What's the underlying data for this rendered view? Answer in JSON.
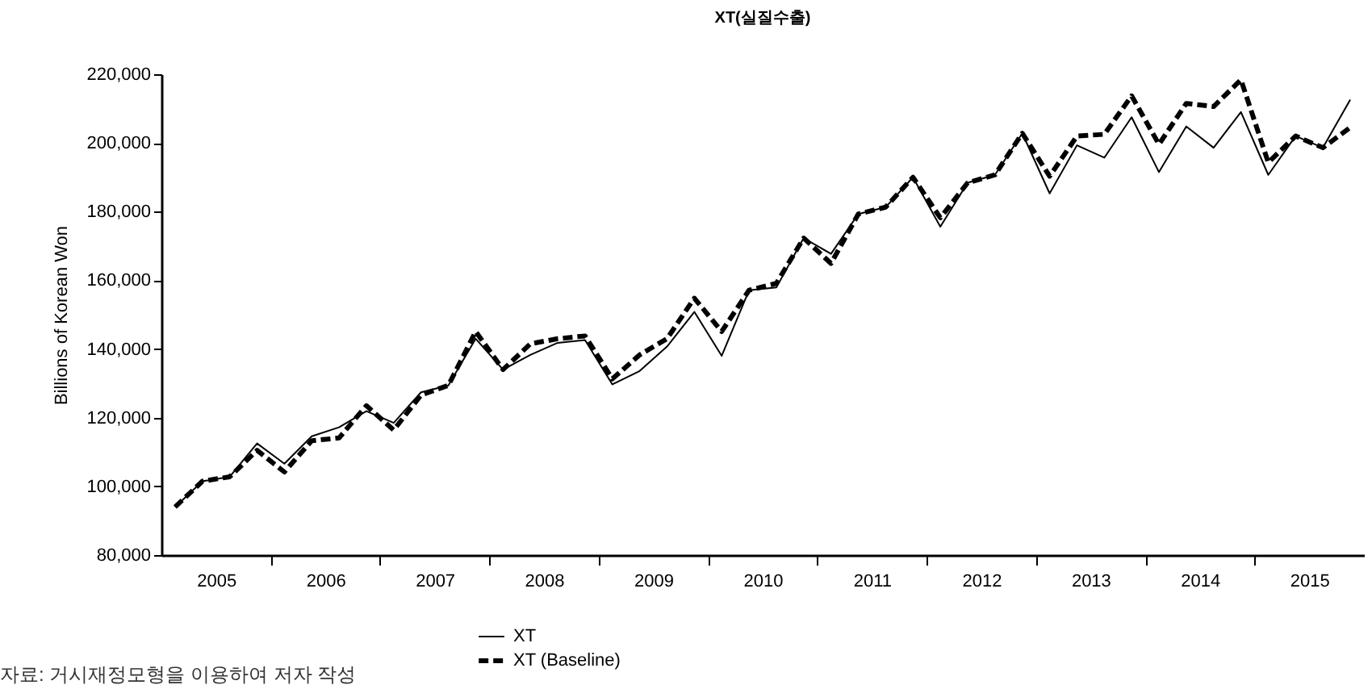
{
  "chart_data": {
    "type": "line",
    "title": "XT(실질수출)",
    "ylabel": "Billions of Korean Won",
    "annotations": [
      "자료: 거시재정모형을 이용하여 저자 작성"
    ],
    "x": [
      2005.125,
      2005.375,
      2005.625,
      2005.875,
      2006.125,
      2006.375,
      2006.625,
      2006.875,
      2007.125,
      2007.375,
      2007.625,
      2007.875,
      2008.125,
      2008.375,
      2008.625,
      2008.875,
      2009.125,
      2009.375,
      2009.625,
      2009.875,
      2010.125,
      2010.375,
      2010.625,
      2010.875,
      2011.125,
      2011.375,
      2011.625,
      2011.875,
      2012.125,
      2012.375,
      2012.625,
      2012.875,
      2013.125,
      2013.375,
      2013.625,
      2013.875,
      2014.125,
      2014.375,
      2014.625,
      2014.875,
      2015.125,
      2015.375,
      2015.625,
      2015.875
    ],
    "series": [
      {
        "name": "XT",
        "color": "#000000",
        "line_style": "solid",
        "values": [
          94000,
          101500,
          102800,
          112500,
          106600,
          114600,
          117200,
          121900,
          118500,
          127400,
          129400,
          143000,
          134000,
          138300,
          141800,
          142600,
          129700,
          133600,
          140700,
          150800,
          138000,
          157100,
          157900,
          172300,
          167700,
          179300,
          181300,
          190000,
          175600,
          188400,
          190700,
          202800,
          185300,
          199300,
          195700,
          207500,
          191500,
          204800,
          198600,
          209000,
          190700,
          202000,
          198600,
          212600
        ]
      },
      {
        "name": "XT (Baseline)",
        "color": "#000000",
        "line_style": "dashed",
        "values": [
          94000,
          101500,
          102800,
          110500,
          104200,
          113300,
          114100,
          123500,
          116400,
          126600,
          129400,
          145100,
          134000,
          141500,
          143000,
          143800,
          131300,
          138300,
          143000,
          154800,
          145100,
          157100,
          159100,
          172300,
          164900,
          179300,
          181300,
          190000,
          178200,
          188400,
          190700,
          202800,
          190300,
          202000,
          202500,
          213700,
          199600,
          211500,
          210600,
          218400,
          194300,
          202000,
          198600,
          204500
        ]
      }
    ],
    "xlim": [
      2005,
      2016
    ],
    "xticks": [
      {
        "value": 2005.5,
        "label": "2005"
      },
      {
        "value": 2006,
        "label": null
      },
      {
        "value": 2006.5,
        "label": "2006"
      },
      {
        "value": 2007,
        "label": null
      },
      {
        "value": 2007.5,
        "label": "2007"
      },
      {
        "value": 2008,
        "label": null
      },
      {
        "value": 2008.5,
        "label": "2008"
      },
      {
        "value": 2009,
        "label": null
      },
      {
        "value": 2009.5,
        "label": "2009"
      },
      {
        "value": 2010,
        "label": null
      },
      {
        "value": 2010.5,
        "label": "2010"
      },
      {
        "value": 2011,
        "label": null
      },
      {
        "value": 2011.5,
        "label": "2011"
      },
      {
        "value": 2012,
        "label": null
      },
      {
        "value": 2012.5,
        "label": "2012"
      },
      {
        "value": 2013,
        "label": null
      },
      {
        "value": 2013.5,
        "label": "2013"
      },
      {
        "value": 2014,
        "label": null
      },
      {
        "value": 2014.5,
        "label": "2014"
      },
      {
        "value": 2015,
        "label": null
      },
      {
        "value": 2015.5,
        "label": "2015"
      }
    ],
    "ylim": [
      80000,
      220000
    ],
    "yticks": [
      {
        "value": 80000,
        "label": "80,000"
      },
      {
        "value": 100000,
        "label": "100,000"
      },
      {
        "value": 120000,
        "label": "120,000"
      },
      {
        "value": 140000,
        "label": "140,000"
      },
      {
        "value": 160000,
        "label": "160,000"
      },
      {
        "value": 180000,
        "label": "180,000"
      },
      {
        "value": 200000,
        "label": "200,000"
      },
      {
        "value": 220000,
        "label": "220,000"
      }
    ],
    "legend": "bottom",
    "marker": "none"
  }
}
